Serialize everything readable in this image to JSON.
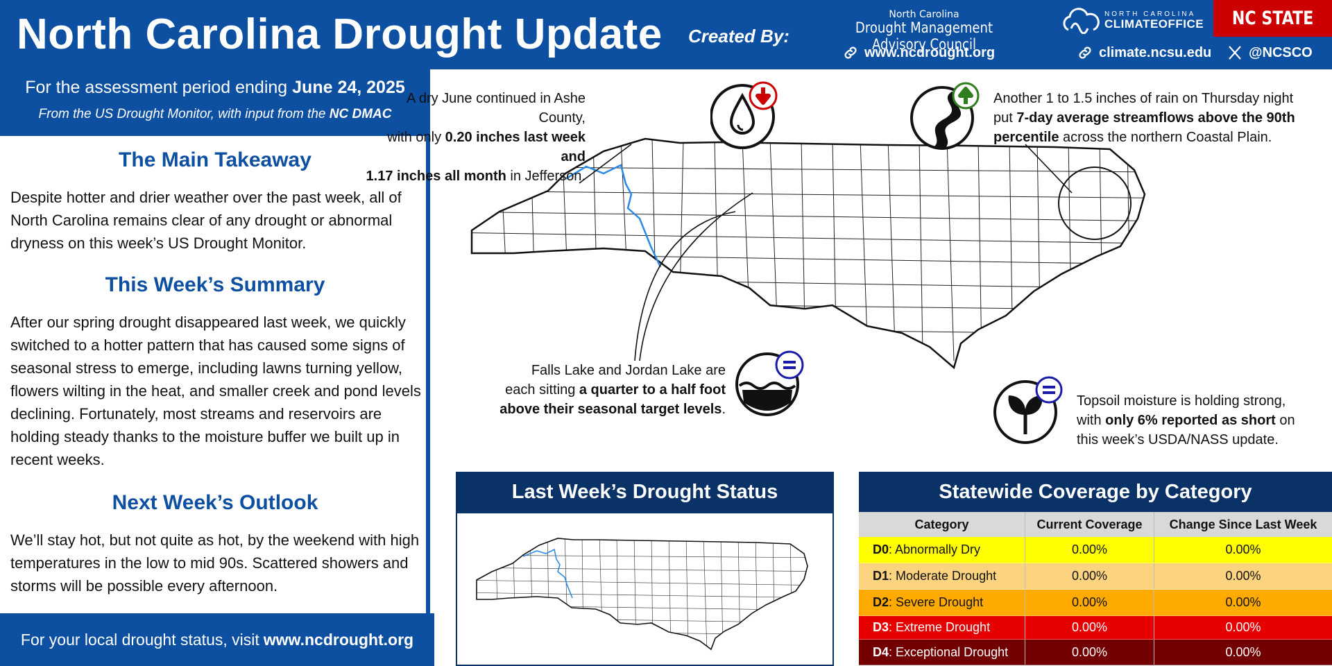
{
  "header": {
    "title": "North Carolina Drought Update",
    "created_by": "Created By:",
    "dmac_line1": "North Carolina",
    "dmac_line2": "Drought Management Advisory Council",
    "link1": "www.ncdrought.org",
    "link2": "climate.ncsu.edu",
    "social": "@NCSCO",
    "sco_top": "NORTH CAROLINA",
    "sco_bottom": "CLIMATEOFFICE",
    "ncstate": "NC STATE"
  },
  "left": {
    "assessment_prefix": "For the assessment period ending",
    "assessment_date": "June 24, 2025",
    "from_prefix": "From the US Drought Monitor, with input from the",
    "from_bold": "NC DMAC",
    "sections": [
      {
        "title": "The Main Takeaway",
        "body": "Despite hotter and drier weather over the past week, all of North Carolina remains clear of any drought or abnormal dryness on this week’s US Drought Monitor."
      },
      {
        "title": "This Week’s Summary",
        "body": "After our spring drought disappeared last week, we quickly switched to a hotter pattern that has caused some signs of seasonal stress to emerge, including lawns turning yellow, flowers wilting in the heat, and smaller creek and pond levels declining. Fortunately, most streams and reservoirs are holding steady thanks to the moisture buffer we built up in recent weeks."
      },
      {
        "title": "Next Week’s Outlook",
        "body": "We’ll stay hot, but not quite as hot, by the weekend with high temperatures in the low to mid 90s. Scattered showers and storms will be possible every afternoon."
      }
    ],
    "footer_prefix": "For your local drought status, visit",
    "footer_link": "www.ncdrought.org"
  },
  "callouts": {
    "ashe": {
      "t1": "A dry June continued in Ashe County,",
      "t2": "with only",
      "b1": "0.20 inches last week and",
      "b2": "1.17 inches all month",
      "t3": "in Jefferson."
    },
    "streamflow": {
      "t1": "Another 1 to 1.5 inches of rain on Thursday night",
      "t2": "put",
      "b1": "7-day average streamflows above the 90th",
      "b2": "percentile",
      "t3": "across the northern Coastal Plain."
    },
    "lakes": {
      "t1": "Falls Lake and Jordan Lake are",
      "t2": "each sitting",
      "b1": "a quarter to a half foot",
      "b2": "above their seasonal target levels",
      "t3": "."
    },
    "topsoil": {
      "t1": "Topsoil moisture is holding strong,",
      "t2": "with",
      "b1": "only 6% reported as short",
      "t3": "on",
      "t4": "this week’s USDA/NASS update."
    }
  },
  "last_week": {
    "title": "Last Week’s Drought Status"
  },
  "coverage": {
    "title": "Statewide Coverage by Category",
    "headers": [
      "Category",
      "Current Coverage",
      "Change Since Last Week"
    ],
    "rows": [
      {
        "code": "D0",
        "name": ": Abnormally Dry",
        "current": "0.00%",
        "change": "0.00%",
        "bg": "#ffff00",
        "fg": "#111111"
      },
      {
        "code": "D1",
        "name": ": Moderate Drought",
        "current": "0.00%",
        "change": "0.00%",
        "bg": "#fcd37f",
        "fg": "#111111"
      },
      {
        "code": "D2",
        "name": ": Severe Drought",
        "current": "0.00%",
        "change": "0.00%",
        "bg": "#ffaa00",
        "fg": "#111111"
      },
      {
        "code": "D3",
        "name": ": Extreme Drought",
        "current": "0.00%",
        "change": "0.00%",
        "bg": "#e60000",
        "fg": "#ffffff"
      },
      {
        "code": "D4",
        "name": ": Exceptional Drought",
        "current": "0.00%",
        "change": "0.00%",
        "bg": "#730000",
        "fg": "#ffffff"
      }
    ]
  },
  "colors": {
    "brand_blue": "#0d4fa0",
    "navy": "#0a3266",
    "ncstate_red": "#cc0000"
  }
}
